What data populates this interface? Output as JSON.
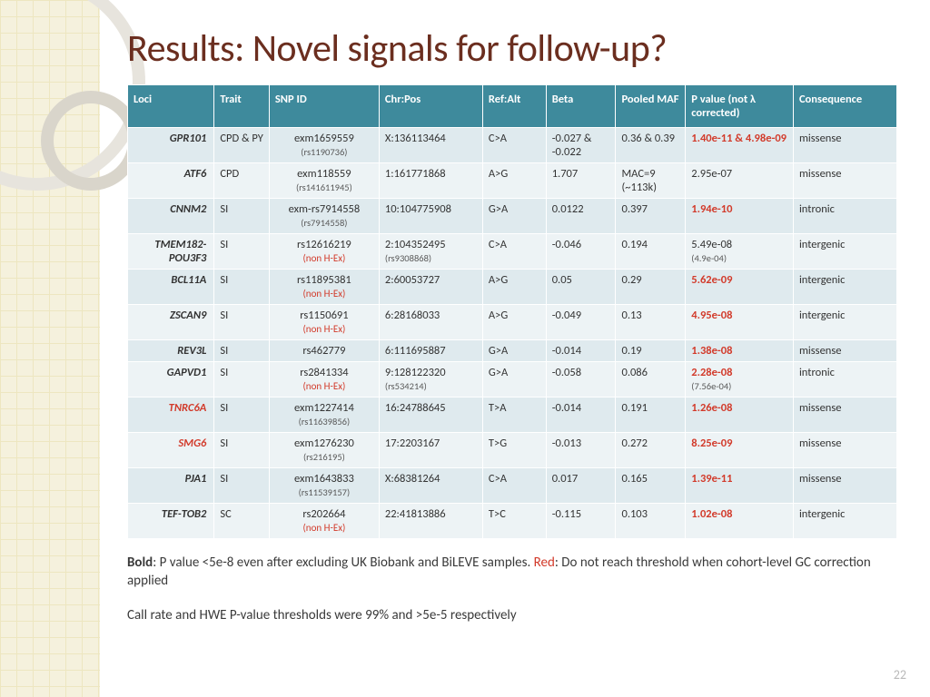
{
  "title": "Results: Novel signals for follow-up?",
  "page_number": "22",
  "palette": {
    "header_bg": "#3e8a9c",
    "header_fg": "#ffffff",
    "row_bg": "#dfeaee",
    "row_alt_bg": "#edf3f5",
    "title_color": "#6b2e1f",
    "red": "#d23a2a",
    "sidebar_bg": "#f2eccf",
    "grid_line": "#e6dca6"
  },
  "columns": [
    "Loci",
    "Trait",
    "SNP ID",
    "Chr:Pos",
    "Ref:Alt",
    "Beta",
    "Pooled MAF",
    "P value (not λ corrected)",
    "Consequence"
  ],
  "rows": [
    {
      "loci": "GPR101",
      "trait": "CPD & PY",
      "snp": "exm1659559",
      "snp_sub": "(rs1190736)",
      "chrpos": "X:136113464",
      "refalt": "C>A",
      "beta": "-0.027 & -0.022",
      "maf": "0.36 & 0.39",
      "p_main": "1.40e-11",
      "p_extra": " & 4.98e-09",
      "p_red": true,
      "cons": "missense"
    },
    {
      "loci": "ATF6",
      "trait": "CPD",
      "snp": "exm118559",
      "snp_sub": "(rs141611945)",
      "chrpos": "1:161771868",
      "refalt": "A>G",
      "beta": "1.707",
      "maf": "MAC=9 (~113k)",
      "p_main": "2.95e-07",
      "p_red": false,
      "cons": "missense"
    },
    {
      "loci": "CNNM2",
      "trait": "SI",
      "snp": "exm-rs7914558",
      "snp_sub": "(rs7914558)",
      "chrpos": "10:104775908",
      "refalt": "G>A",
      "beta": "0.0122",
      "maf": "0.397",
      "p_main": "1.94e-10",
      "p_red": true,
      "cons": "intronic"
    },
    {
      "loci": "TMEM182-POU3F3",
      "trait": "SI",
      "snp": "rs12616219",
      "nonhex": true,
      "chrpos": "2:104352495",
      "chrpos_sub": "(rs9308868)",
      "refalt": "C>A",
      "beta": "-0.046",
      "maf": "0.194",
      "p_main": "5.49e-08",
      "p_sub": "(4.9e-04)",
      "p_red": false,
      "cons": "intergenic"
    },
    {
      "loci": "BCL11A",
      "trait": "SI",
      "snp": "rs11895381",
      "nonhex": true,
      "chrpos": "2:60053727",
      "refalt": "A>G",
      "beta": "0.05",
      "maf": "0.29",
      "p_main": "5.62e-09",
      "p_red": true,
      "cons": "intergenic"
    },
    {
      "loci": "ZSCAN9",
      "trait": "SI",
      "snp": "rs1150691",
      "nonhex": true,
      "chrpos": "6:28168033",
      "refalt": "A>G",
      "beta": "-0.049",
      "maf": "0.13",
      "p_main": "4.95e-08",
      "p_red": true,
      "cons": "intergenic"
    },
    {
      "loci": "REV3L",
      "trait": "SI",
      "snp": "rs462779",
      "chrpos": "6:111695887",
      "refalt": "G>A",
      "beta": "-0.014",
      "maf": "0.19",
      "p_main": "1.38e-08",
      "p_red": true,
      "cons": "missense"
    },
    {
      "loci": "GAPVD1",
      "trait": "SI",
      "snp": "rs2841334",
      "nonhex": true,
      "chrpos": "9:128122320",
      "chrpos_sub": "(rs534214)",
      "refalt": "G>A",
      "beta": "-0.058",
      "maf": "0.086",
      "p_main": "2.28e-08",
      "p_sub": "(7.56e-04)",
      "p_red": true,
      "cons": "intronic"
    },
    {
      "loci": "TNRC6A",
      "loci_red": true,
      "trait": "SI",
      "snp": "exm1227414",
      "snp_sub": "(rs11639856)",
      "chrpos": "16:24788645",
      "refalt": "T>A",
      "beta": "-0.014",
      "maf": "0.191",
      "p_main": "1.26e-08",
      "p_red": true,
      "cons": "missense"
    },
    {
      "loci": "SMG6",
      "loci_red": true,
      "trait": "SI",
      "snp": "exm1276230",
      "snp_sub": "(rs216195)",
      "chrpos": "17:2203167",
      "refalt": "T>G",
      "beta": "-0.013",
      "maf": "0.272",
      "p_main": "8.25e-09",
      "p_red": true,
      "cons": "missense"
    },
    {
      "loci": "PJA1",
      "loci_bold": true,
      "trait": "SI",
      "snp": "exm1643833",
      "snp_sub": "(rs11539157)",
      "chrpos": "X:68381264",
      "refalt": "C>A",
      "beta": "0.017",
      "maf": "0.165",
      "p_main": "1.39e-11",
      "p_red": true,
      "cons": "missense"
    },
    {
      "loci": "TEF-TOB2",
      "trait": "SC",
      "snp": "rs202664",
      "nonhex": true,
      "chrpos": "22:41813886",
      "refalt": "T>C",
      "beta": "-0.115",
      "maf": "0.103",
      "p_main": "1.02e-08",
      "p_red": true,
      "cons": "intergenic"
    }
  ],
  "footnote_bold": "Bold",
  "footnote_bold_text": ": P value <5e-8 even after excluding UK Biobank and BiLEVE samples. ",
  "footnote_red": "Red",
  "footnote_red_text": ": Do not reach threshold when cohort-level GC correction applied",
  "footnote2": "Call rate and HWE P-value thresholds were 99% and >5e-5 respectively"
}
